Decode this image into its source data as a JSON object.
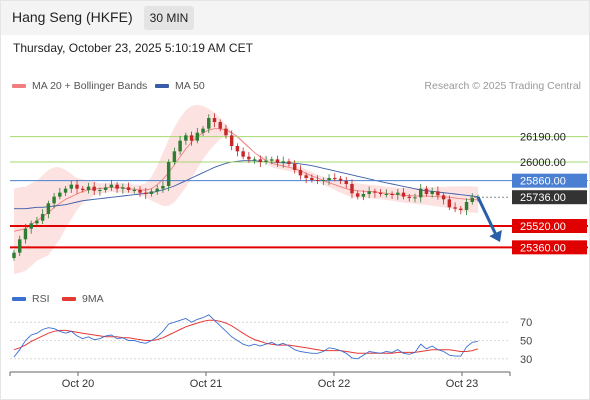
{
  "header": {
    "title": "Hang Seng (HKFE)",
    "timeframe": "30 MIN",
    "timestamp": "Thursday, October 23, 2025 5:10:19 AM CET"
  },
  "legend": {
    "ma20_label": "MA 20 + Bollinger Bands",
    "ma50_label": "MA 50",
    "credit": "Research © 2025 Trading Central",
    "rsi_label": "RSI",
    "rsi_ma_label": "9MA"
  },
  "colors": {
    "ma20": "#f08080",
    "bollinger_fill": "#fde2e2",
    "ma50": "#3b5da8",
    "candle_up": "#2e7d32",
    "candle_down": "#c62828",
    "resistance": "#a5d86e",
    "pivot": "#4a7fd1",
    "support": "#e00000",
    "current_price": "#333333",
    "arrow": "#2a5ea8",
    "rsi": "#3b6fd1",
    "rsi_ma": "#e53935"
  },
  "chart_data": [
    {
      "type": "candlestick",
      "x_labels": [
        "Oct 20",
        "Oct 21",
        "Oct 22",
        "Oct 23"
      ],
      "ylim": [
        25250,
        26450
      ],
      "levels": [
        {
          "value": 26190.0,
          "label": "26190.00",
          "kind": "resistance"
        },
        {
          "value": 26000.0,
          "label": "26000.00",
          "kind": "resistance"
        },
        {
          "value": 25860.0,
          "label": "25860.00",
          "kind": "pivot"
        },
        {
          "value": 25736.0,
          "label": "25736.00",
          "kind": "current"
        },
        {
          "value": 25520.0,
          "label": "25520.00",
          "kind": "support"
        },
        {
          "value": 25360.0,
          "label": "25360.00",
          "kind": "support"
        }
      ],
      "close": [
        25320,
        25420,
        25500,
        25540,
        25560,
        25610,
        25690,
        25740,
        25770,
        25800,
        25830,
        25800,
        25790,
        25815,
        25785,
        25790,
        25810,
        25830,
        25800,
        25810,
        25790,
        25790,
        25770,
        25760,
        25780,
        25800,
        25820,
        26000,
        26080,
        26160,
        26200,
        26160,
        26220,
        26250,
        26330,
        26300,
        26250,
        26200,
        26120,
        26080,
        26040,
        26020,
        26020,
        26000,
        26010,
        26020,
        25995,
        26005,
        25985,
        25940,
        25900,
        25880,
        25865,
        25860,
        25865,
        25880,
        25875,
        25860,
        25835,
        25765,
        25740,
        25760,
        25780,
        25770,
        25760,
        25760,
        25755,
        25770,
        25740,
        25730,
        25735,
        25800,
        25760,
        25780,
        25750,
        25720,
        25660,
        25650,
        25640,
        25700,
        25730,
        25736
      ],
      "ma20": [
        25480,
        25490,
        25500,
        25530,
        25560,
        25590,
        25620,
        25660,
        25690,
        25720,
        25740,
        25760,
        25780,
        25790,
        25800,
        25800,
        25805,
        25810,
        25810,
        25805,
        25800,
        25795,
        25790,
        25790,
        25800,
        25830,
        25870,
        25920,
        25980,
        26040,
        26100,
        26150,
        26190,
        26220,
        26240,
        26250,
        26250,
        26240,
        26220,
        26190,
        26150,
        26110,
        26070,
        26040,
        26010,
        25990,
        25980,
        25970,
        25960,
        25950,
        25935,
        25915,
        25895,
        25880,
        25860,
        25845,
        25830,
        25815,
        25800,
        25790,
        25785,
        25780,
        25780,
        25775,
        25770,
        25765,
        25760,
        25755,
        25750,
        25748,
        25746,
        25745,
        25744,
        25742,
        25740,
        25738,
        25735,
        25730,
        25725,
        25720,
        25718,
        25716
      ],
      "bb_upper": [
        25800,
        25810,
        25815,
        25840,
        25860,
        25900,
        25940,
        25960,
        25960,
        25940,
        25910,
        25880,
        25870,
        25860,
        25850,
        25840,
        25840,
        25845,
        25845,
        25840,
        25835,
        25830,
        25830,
        25840,
        25890,
        25970,
        26070,
        26170,
        26260,
        26330,
        26390,
        26420,
        26430,
        26420,
        26400,
        26370,
        26330,
        26280,
        26230,
        26180,
        26140,
        26100,
        26070,
        26050,
        26030,
        26020,
        26010,
        26000,
        25990,
        25975,
        25960,
        25945,
        25925,
        25905,
        25890,
        25880,
        25870,
        25860,
        25850,
        25845,
        25840,
        25835,
        25830,
        25825,
        25820,
        25815,
        25810,
        25808,
        25806,
        25805,
        25806,
        25808,
        25810,
        25812,
        25814,
        25815,
        25816,
        25817,
        25818,
        25818,
        25816,
        25814
      ],
      "bb_lower": [
        25160,
        25170,
        25185,
        25220,
        25260,
        25280,
        25300,
        25360,
        25420,
        25500,
        25570,
        25640,
        25690,
        25720,
        25750,
        25760,
        25770,
        25775,
        25775,
        25770,
        25765,
        25760,
        25750,
        25740,
        25710,
        25690,
        25670,
        25670,
        25700,
        25750,
        25810,
        25880,
        25950,
        26020,
        26080,
        26130,
        26170,
        26200,
        26210,
        26200,
        26160,
        26120,
        26070,
        26030,
        25990,
        25960,
        25950,
        25940,
        25930,
        25925,
        25910,
        25885,
        25865,
        25855,
        25830,
        25810,
        25790,
        25770,
        25750,
        25735,
        25730,
        25725,
        25730,
        25725,
        25720,
        25715,
        25710,
        25702,
        25694,
        25691,
        25686,
        25682,
        25678,
        25672,
        25666,
        25661,
        25654,
        25643,
        25632,
        25622,
        25620,
        25618
      ],
      "ma50": [
        25650,
        25650,
        25650,
        25655,
        25660,
        25660,
        25665,
        25670,
        25675,
        25680,
        25690,
        25700,
        25710,
        25715,
        25720,
        25725,
        25730,
        25735,
        25740,
        25745,
        25750,
        25755,
        25760,
        25765,
        25770,
        25780,
        25790,
        25805,
        25820,
        25840,
        25860,
        25880,
        25900,
        25920,
        25940,
        25960,
        25975,
        25990,
        26000,
        26005,
        26010,
        26010,
        26010,
        26005,
        26000,
        25998,
        25996,
        25994,
        25992,
        25990,
        25986,
        25980,
        25972,
        25963,
        25953,
        25943,
        25933,
        25923,
        25913,
        25903,
        25893,
        25883,
        25873,
        25863,
        25853,
        25844,
        25835,
        25826,
        25817,
        25808,
        25799,
        25790,
        25785,
        25780,
        25775,
        25770,
        25765,
        25760,
        25755,
        25750,
        25745,
        25740
      ]
    },
    {
      "type": "line",
      "name": "RSI",
      "ylim": [
        20,
        80
      ],
      "y_ticks": [
        70,
        50,
        30
      ],
      "rsi": [
        32,
        40,
        50,
        56,
        58,
        62,
        64,
        63,
        60,
        58,
        60,
        55,
        52,
        54,
        51,
        52,
        55,
        56,
        52,
        53,
        50,
        50,
        48,
        47,
        50,
        54,
        60,
        68,
        70,
        72,
        74,
        70,
        73,
        75,
        78,
        72,
        66,
        60,
        54,
        50,
        46,
        44,
        46,
        44,
        46,
        48,
        45,
        47,
        44,
        40,
        38,
        37,
        36,
        36,
        38,
        42,
        41,
        39,
        36,
        31,
        30,
        34,
        38,
        37,
        36,
        38,
        37,
        40,
        36,
        35,
        37,
        46,
        41,
        44,
        40,
        38,
        34,
        33,
        33,
        43,
        48,
        49
      ],
      "ma9": [
        40,
        42,
        45,
        49,
        52,
        55,
        58,
        60,
        61,
        61,
        60,
        59,
        58,
        57,
        56,
        55,
        54,
        54,
        54,
        53,
        53,
        52,
        51,
        50,
        50,
        51,
        53,
        56,
        59,
        62,
        65,
        67,
        69,
        71,
        72,
        72,
        71,
        69,
        66,
        62,
        58,
        54,
        51,
        49,
        47,
        46,
        45,
        45,
        45,
        44,
        43,
        42,
        41,
        40,
        39,
        39,
        39,
        39,
        38,
        37,
        36,
        36,
        36,
        36,
        36,
        36,
        36,
        37,
        37,
        37,
        37,
        38,
        39,
        40,
        40,
        40,
        40,
        39,
        38,
        38,
        39,
        41
      ]
    }
  ]
}
